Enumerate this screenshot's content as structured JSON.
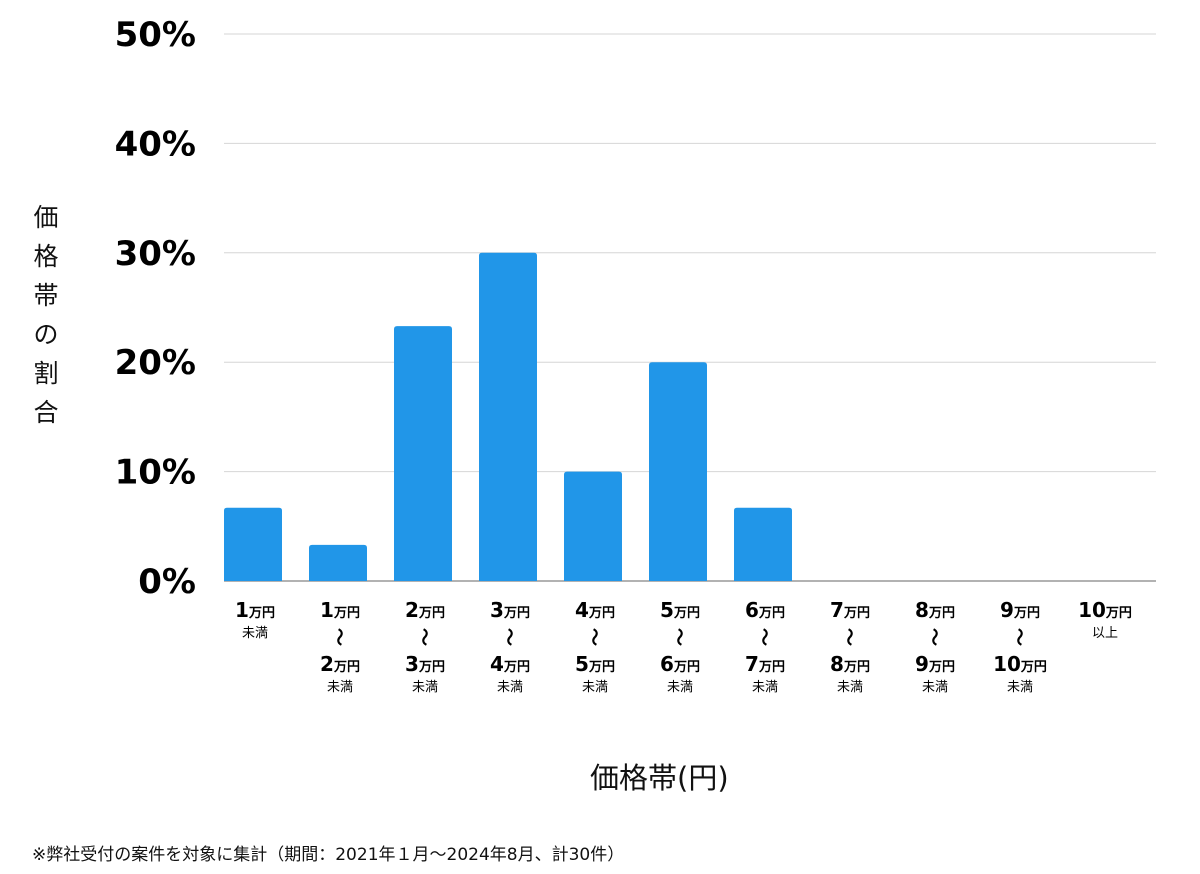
{
  "chart_data": {
    "type": "bar",
    "ylabel": "価格帯の割合",
    "xlabel": "価格帯(円)",
    "ylim": [
      0,
      50
    ],
    "yticks": [
      "0%",
      "10%",
      "20%",
      "30%",
      "40%",
      "50%"
    ],
    "ytick_values": [
      0,
      10,
      20,
      30,
      40,
      50
    ],
    "grid": true,
    "bar_color": "#2196e8",
    "tick_separator": "〜",
    "categories": [
      {
        "lines": [
          {
            "num": "1",
            "unit": "万円"
          }
        ],
        "suffix": "未満"
      },
      {
        "lines": [
          {
            "num": "1",
            "unit": "万円"
          },
          {
            "num": "2",
            "unit": "万円"
          }
        ],
        "suffix": "未満"
      },
      {
        "lines": [
          {
            "num": "2",
            "unit": "万円"
          },
          {
            "num": "3",
            "unit": "万円"
          }
        ],
        "suffix": "未満"
      },
      {
        "lines": [
          {
            "num": "3",
            "unit": "万円"
          },
          {
            "num": "4",
            "unit": "万円"
          }
        ],
        "suffix": "未満"
      },
      {
        "lines": [
          {
            "num": "4",
            "unit": "万円"
          },
          {
            "num": "5",
            "unit": "万円"
          }
        ],
        "suffix": "未満"
      },
      {
        "lines": [
          {
            "num": "5",
            "unit": "万円"
          },
          {
            "num": "6",
            "unit": "万円"
          }
        ],
        "suffix": "未満"
      },
      {
        "lines": [
          {
            "num": "6",
            "unit": "万円"
          },
          {
            "num": "7",
            "unit": "万円"
          }
        ],
        "suffix": "未満"
      },
      {
        "lines": [
          {
            "num": "7",
            "unit": "万円"
          },
          {
            "num": "8",
            "unit": "万円"
          }
        ],
        "suffix": "未満"
      },
      {
        "lines": [
          {
            "num": "8",
            "unit": "万円"
          },
          {
            "num": "9",
            "unit": "万円"
          }
        ],
        "suffix": "未満"
      },
      {
        "lines": [
          {
            "num": "9",
            "unit": "万円"
          },
          {
            "num": "10",
            "unit": "万円"
          }
        ],
        "suffix": "未満"
      },
      {
        "lines": [
          {
            "num": "10",
            "unit": "万円"
          }
        ],
        "suffix": "以上"
      }
    ],
    "values": [
      6.7,
      3.3,
      23.3,
      30.0,
      10.0,
      20.0,
      6.7,
      0,
      0,
      0,
      0
    ]
  },
  "footnote": "※弊社受付の案件を対象に集計（期間：2021年１月〜2024年8月、計30件）"
}
